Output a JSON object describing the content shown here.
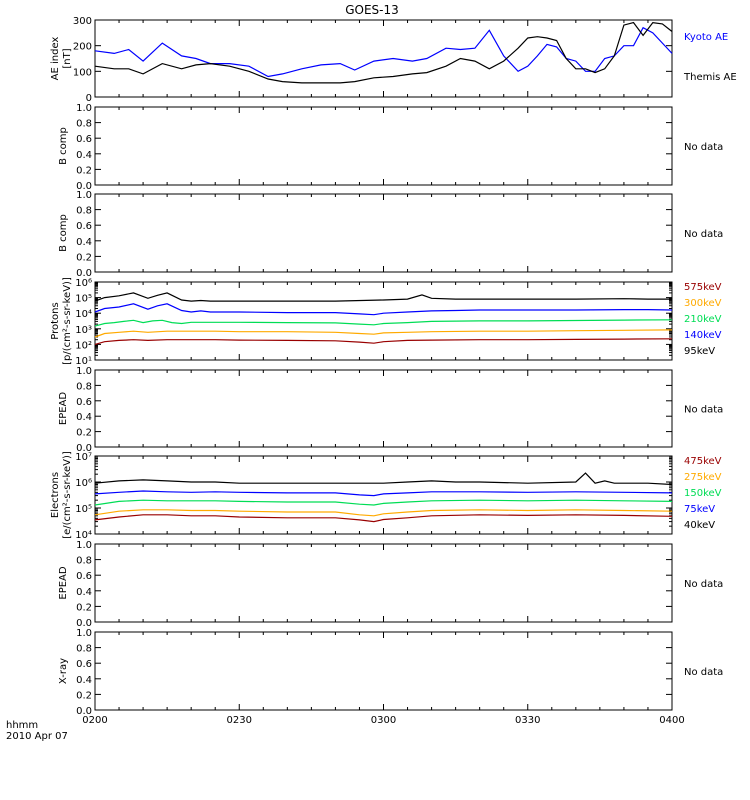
{
  "title": "GOES-13",
  "footer": {
    "time_unit": "hhmm",
    "date": "2010 Apr 07",
    "x_ticks": [
      "0200",
      "0230",
      "0300",
      "0330",
      "0400"
    ]
  },
  "chart_data": [
    {
      "type": "line",
      "ylabel": [
        "AE index",
        "[nT]"
      ],
      "ylim": [
        0,
        300
      ],
      "yticks": [
        "0",
        "100",
        "200",
        "300"
      ],
      "log": false,
      "x_unit": "minutes past 0200",
      "series": [
        {
          "name": "Kyoto AE",
          "color": "#0000ff",
          "x": [
            0,
            4,
            7,
            10,
            14,
            18,
            21,
            24,
            28,
            32,
            36,
            39,
            43,
            47,
            51,
            54,
            58,
            62,
            66,
            69,
            73,
            76,
            79,
            82,
            85,
            88,
            90,
            92,
            94,
            96,
            98,
            100,
            102,
            104,
            106,
            108,
            110,
            112,
            114,
            116,
            118,
            120
          ],
          "y": [
            180,
            170,
            185,
            140,
            210,
            160,
            150,
            130,
            130,
            120,
            80,
            90,
            110,
            125,
            130,
            105,
            140,
            150,
            140,
            150,
            190,
            185,
            190,
            260,
            160,
            100,
            120,
            160,
            205,
            195,
            150,
            140,
            100,
            100,
            150,
            160,
            200,
            200,
            270,
            250,
            210,
            170
          ]
        },
        {
          "name": "Themis AE",
          "color": "#000000",
          "x": [
            0,
            4,
            7,
            10,
            14,
            18,
            21,
            24,
            28,
            32,
            36,
            39,
            43,
            47,
            51,
            54,
            58,
            62,
            66,
            69,
            73,
            76,
            79,
            82,
            85,
            88,
            90,
            92,
            94,
            96,
            98,
            100,
            102,
            104,
            106,
            108,
            110,
            112,
            114,
            116,
            118,
            120
          ],
          "y": [
            120,
            110,
            110,
            90,
            130,
            110,
            125,
            130,
            120,
            100,
            70,
            60,
            55,
            55,
            55,
            60,
            75,
            80,
            90,
            95,
            120,
            150,
            140,
            110,
            140,
            190,
            230,
            235,
            230,
            220,
            150,
            110,
            110,
            95,
            110,
            160,
            280,
            290,
            240,
            290,
            285,
            255
          ]
        }
      ],
      "legend": [
        "Kyoto AE",
        "Themis AE"
      ]
    },
    {
      "type": "line",
      "ylabel": [
        "B comp"
      ],
      "ylim": [
        0,
        1
      ],
      "yticks": [
        "0.0",
        "0.2",
        "0.4",
        "0.6",
        "0.8",
        "1.0"
      ],
      "note": "No data",
      "series": []
    },
    {
      "type": "line",
      "ylabel": [
        "B comp"
      ],
      "ylim": [
        0,
        1
      ],
      "yticks": [
        "0.0",
        "0.2",
        "0.4",
        "0.6",
        "0.8",
        "1.0"
      ],
      "note": "No data",
      "series": []
    },
    {
      "type": "line",
      "ylabel": [
        "Protons",
        "[p/(cm²-s-sr-keV)]"
      ],
      "ylim": [
        10,
        1000000
      ],
      "log": true,
      "yticks": [
        "10¹",
        "10²",
        "10³",
        "10⁴",
        "10⁵",
        "10⁶"
      ],
      "legend": [
        "575keV",
        "300keV",
        "210keV",
        "140keV",
        "95keV"
      ],
      "series": [
        {
          "name": "95keV",
          "color": "#000000",
          "x": [
            0,
            2,
            5,
            8,
            11,
            13,
            15,
            18,
            20,
            22,
            24,
            30,
            40,
            50,
            60,
            65,
            68,
            70,
            75,
            80,
            90,
            100,
            110,
            115,
            118,
            120
          ],
          "y": [
            60000,
            100000,
            130000,
            200000,
            90000,
            140000,
            200000,
            70000,
            60000,
            65000,
            60000,
            60000,
            60000,
            60000,
            70000,
            80000,
            150000,
            90000,
            80000,
            80000,
            80000,
            80000,
            85000,
            80000,
            80000,
            80000
          ]
        },
        {
          "name": "140keV",
          "color": "#0000ff",
          "x": [
            0,
            2,
            5,
            8,
            11,
            13,
            15,
            18,
            20,
            22,
            24,
            30,
            40,
            50,
            55,
            58,
            60,
            65,
            70,
            75,
            80,
            90,
            100,
            110,
            115,
            120
          ],
          "y": [
            12000,
            20000,
            25000,
            40000,
            18000,
            30000,
            40000,
            15000,
            12000,
            14000,
            12000,
            12000,
            11000,
            11000,
            9000,
            8000,
            10000,
            12000,
            14000,
            15000,
            16000,
            16000,
            16000,
            17000,
            17000,
            16000
          ]
        },
        {
          "name": "210keV",
          "color": "#00dd55",
          "x": [
            0,
            2,
            4,
            6,
            8,
            10,
            12,
            14,
            16,
            18,
            20,
            24,
            30,
            40,
            50,
            55,
            58,
            60,
            65,
            70,
            80,
            90,
            100,
            110,
            120
          ],
          "y": [
            1500,
            2200,
            2500,
            3000,
            3500,
            2500,
            3200,
            3500,
            2500,
            2200,
            2600,
            2600,
            2600,
            2500,
            2400,
            2000,
            1800,
            2200,
            2500,
            3000,
            3200,
            3200,
            3400,
            3600,
            3800
          ]
        },
        {
          "name": "300keV",
          "color": "#ffaa00",
          "x": [
            0,
            2,
            5,
            8,
            11,
            15,
            20,
            25,
            30,
            40,
            50,
            55,
            58,
            60,
            65,
            70,
            80,
            90,
            100,
            110,
            120
          ],
          "y": [
            300,
            500,
            600,
            700,
            600,
            700,
            700,
            700,
            650,
            650,
            600,
            500,
            450,
            550,
            600,
            650,
            700,
            700,
            750,
            800,
            850
          ]
        },
        {
          "name": "575keV",
          "color": "#990000",
          "x": [
            0,
            2,
            5,
            8,
            11,
            15,
            20,
            25,
            30,
            40,
            50,
            55,
            58,
            60,
            65,
            70,
            80,
            90,
            100,
            110,
            120
          ],
          "y": [
            100,
            150,
            180,
            200,
            180,
            200,
            200,
            200,
            190,
            180,
            170,
            140,
            120,
            150,
            180,
            190,
            200,
            200,
            210,
            220,
            230
          ]
        }
      ]
    },
    {
      "type": "line",
      "ylabel": [
        "EPEAD"
      ],
      "ylim": [
        0,
        1
      ],
      "yticks": [
        "0.0",
        "0.2",
        "0.4",
        "0.6",
        "0.8",
        "1.0"
      ],
      "note": "No data",
      "series": []
    },
    {
      "type": "line",
      "ylabel": [
        "Electrons",
        "[e/(cm²-s-sr-keV)]"
      ],
      "ylim": [
        10000,
        10000000
      ],
      "log": true,
      "yticks": [
        "10⁴",
        "10⁵",
        "10⁶",
        "10⁷"
      ],
      "legend": [
        "475keV",
        "275keV",
        "150keV",
        "75keV",
        "40keV"
      ],
      "series": [
        {
          "name": "40keV",
          "color": "#000000",
          "x": [
            0,
            5,
            10,
            15,
            20,
            25,
            30,
            40,
            50,
            60,
            65,
            70,
            75,
            80,
            90,
            100,
            102,
            104,
            106,
            108,
            110,
            115,
            120
          ],
          "y": [
            900000,
            1100000,
            1200000,
            1100000,
            1000000,
            1000000,
            900000,
            900000,
            900000,
            900000,
            1000000,
            1100000,
            1000000,
            1000000,
            900000,
            1000000,
            2200000,
            900000,
            1100000,
            900000,
            900000,
            900000,
            800000
          ]
        },
        {
          "name": "75keV",
          "color": "#0000ff",
          "x": [
            0,
            5,
            10,
            15,
            20,
            25,
            30,
            40,
            50,
            55,
            58,
            60,
            65,
            70,
            80,
            90,
            100,
            110,
            120
          ],
          "y": [
            350000,
            400000,
            450000,
            420000,
            400000,
            420000,
            400000,
            380000,
            380000,
            320000,
            300000,
            350000,
            380000,
            420000,
            420000,
            400000,
            420000,
            400000,
            380000
          ]
        },
        {
          "name": "150keV",
          "color": "#00dd55",
          "x": [
            0,
            5,
            10,
            15,
            20,
            25,
            30,
            40,
            50,
            55,
            58,
            60,
            65,
            70,
            80,
            90,
            100,
            110,
            120
          ],
          "y": [
            130000,
            180000,
            200000,
            190000,
            190000,
            190000,
            180000,
            170000,
            170000,
            140000,
            130000,
            150000,
            170000,
            190000,
            200000,
            190000,
            200000,
            190000,
            180000
          ]
        },
        {
          "name": "275keV",
          "color": "#ffaa00",
          "x": [
            0,
            5,
            10,
            15,
            20,
            25,
            30,
            40,
            50,
            55,
            58,
            60,
            65,
            70,
            80,
            90,
            100,
            110,
            120
          ],
          "y": [
            55000,
            75000,
            85000,
            85000,
            80000,
            80000,
            75000,
            70000,
            70000,
            55000,
            50000,
            60000,
            70000,
            80000,
            85000,
            80000,
            85000,
            80000,
            75000
          ]
        },
        {
          "name": "475keV",
          "color": "#990000",
          "x": [
            0,
            5,
            10,
            15,
            20,
            25,
            30,
            40,
            50,
            55,
            58,
            60,
            65,
            70,
            80,
            90,
            100,
            110,
            120
          ],
          "y": [
            35000,
            45000,
            55000,
            55000,
            50000,
            50000,
            45000,
            42000,
            42000,
            35000,
            30000,
            36000,
            42000,
            50000,
            55000,
            52000,
            55000,
            52000,
            48000
          ]
        }
      ]
    },
    {
      "type": "line",
      "ylabel": [
        "EPEAD"
      ],
      "ylim": [
        0,
        1
      ],
      "yticks": [
        "0.0",
        "0.2",
        "0.4",
        "0.6",
        "0.8",
        "1.0"
      ],
      "note": "No data",
      "series": []
    },
    {
      "type": "line",
      "ylabel": [
        "X-ray"
      ],
      "ylim": [
        0,
        1
      ],
      "yticks": [
        "0.0",
        "0.2",
        "0.4",
        "0.6",
        "0.8",
        "1.0"
      ],
      "note": "No data",
      "series": []
    }
  ]
}
